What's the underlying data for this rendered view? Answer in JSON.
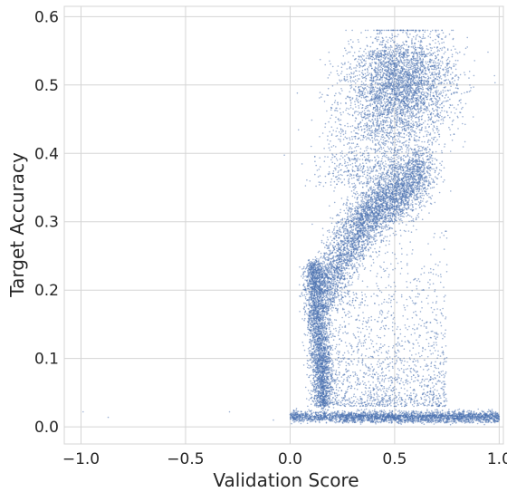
{
  "chart_data": {
    "type": "scatter",
    "xlabel": "Validation Score",
    "ylabel": "Target Accuracy",
    "xlim": [
      -1.08,
      1.02
    ],
    "ylim": [
      -0.025,
      0.615
    ],
    "xticks": [
      -1.0,
      -0.5,
      0.0,
      0.5,
      1.0
    ],
    "xtick_labels": [
      "−1.0",
      "−0.5",
      "0.0",
      "0.5",
      "1.0"
    ],
    "yticks": [
      0.0,
      0.1,
      0.2,
      0.3,
      0.4,
      0.5,
      0.6
    ],
    "ytick_labels": [
      "0.0",
      "0.1",
      "0.2",
      "0.3",
      "0.4",
      "0.5",
      "0.6"
    ],
    "grid": true,
    "legend": "none",
    "marker_color": "#4c72b0",
    "background": "#ffffff",
    "grid_color": "#d5d5d5",
    "point_clusters": [
      {
        "description_values": "low-score tail",
        "x": [
          0.12,
          0.13,
          0.15,
          0.14,
          0.13,
          0.15,
          0.18
        ],
        "y": [
          0.22,
          0.19,
          0.16,
          0.13,
          0.1,
          0.08,
          0.06
        ]
      },
      {
        "description_values": "main ridge",
        "x": [
          0.16,
          0.2,
          0.25,
          0.3,
          0.36,
          0.42,
          0.48,
          0.54,
          0.6
        ],
        "y": [
          0.24,
          0.27,
          0.29,
          0.31,
          0.32,
          0.34,
          0.37,
          0.41,
          0.46
        ]
      },
      {
        "description_values": "upper cluster",
        "x": [
          0.35,
          0.4,
          0.45,
          0.5,
          0.55,
          0.6,
          0.65,
          0.7,
          0.75
        ],
        "y": [
          0.47,
          0.5,
          0.52,
          0.53,
          0.55,
          0.55,
          0.54,
          0.52,
          0.5
        ]
      },
      {
        "description_values": "near-zero band",
        "x": [
          0.0,
          0.2,
          0.4,
          0.6,
          0.8,
          1.0
        ],
        "y": [
          0.015,
          0.015,
          0.013,
          0.013,
          0.015,
          0.018
        ]
      },
      {
        "description_values": "sparse outliers",
        "x": [
          -0.99,
          -0.87,
          -0.29,
          -0.08
        ],
        "y": [
          0.022,
          0.014,
          0.022,
          0.01
        ]
      }
    ]
  }
}
